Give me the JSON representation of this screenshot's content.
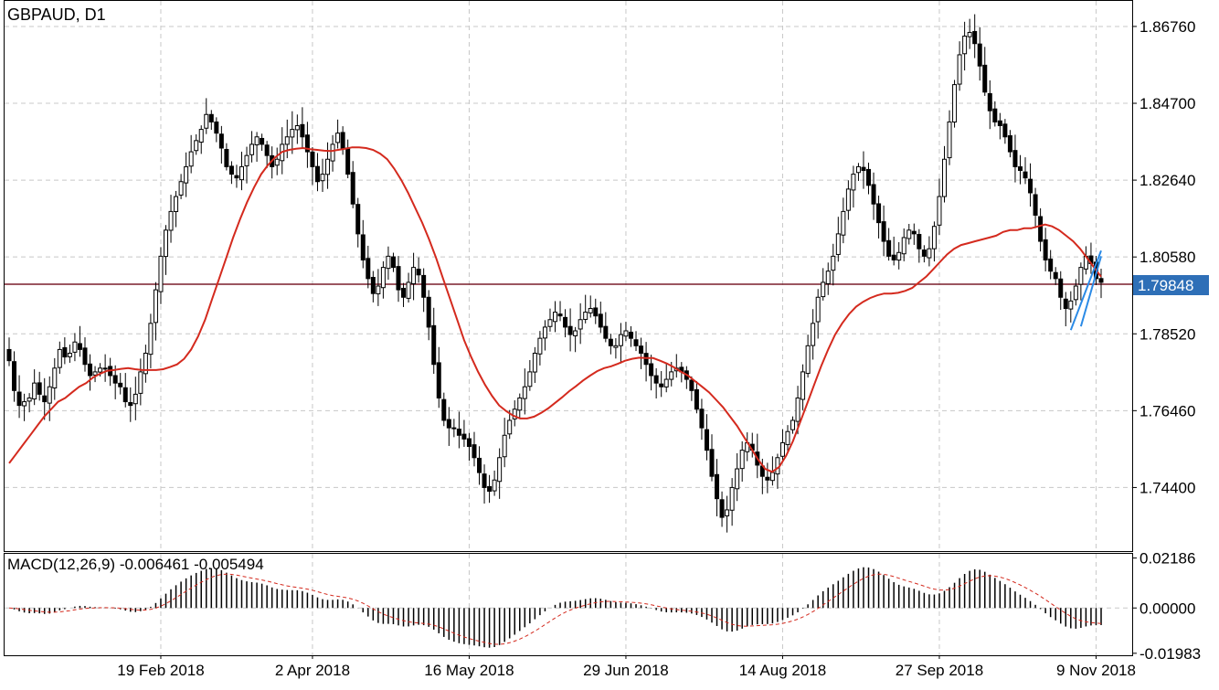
{
  "colors": {
    "candle": "#000000",
    "ma_line": "#d42a1e",
    "price_line": "#7a1f2b",
    "price_badge": "#2e6fb7",
    "trend_line": "#2a8ae6",
    "macd_signal": "#d42a1e",
    "grid": "#c8c8c8"
  },
  "chart_data": [
    {
      "type": "candlestick",
      "title": "GBPAUD, D1",
      "ylim": [
        1.7272,
        1.8742
      ],
      "y_ticks": [
        "1.86760",
        "1.84700",
        "1.82640",
        "1.80580",
        "1.78520",
        "1.76460",
        "1.74400"
      ],
      "current_price": "1.79848",
      "x_ticks": [
        "19 Feb 2018",
        "2 Apr 2018",
        "16 May 2018",
        "29 Jun 2018",
        "14 Aug 2018",
        "27 Sep 2018",
        "9 Nov 2018"
      ],
      "x_tick_bar_index": [
        30,
        60,
        91,
        122,
        153,
        184,
        215
      ],
      "closes": [
        1.778,
        1.77,
        1.766,
        1.767,
        1.768,
        1.772,
        1.769,
        1.767,
        1.771,
        1.776,
        1.781,
        1.779,
        1.78,
        1.783,
        1.781,
        1.777,
        1.774,
        1.775,
        1.776,
        1.776,
        1.774,
        1.772,
        1.771,
        1.767,
        1.766,
        1.769,
        1.775,
        1.78,
        1.788,
        1.797,
        1.806,
        1.813,
        1.818,
        1.822,
        1.826,
        1.83,
        1.834,
        1.837,
        1.84,
        1.844,
        1.842,
        1.839,
        1.835,
        1.83,
        1.828,
        1.827,
        1.83,
        1.833,
        1.836,
        1.838,
        1.836,
        1.833,
        1.83,
        1.832,
        1.836,
        1.838,
        1.84,
        1.841,
        1.838,
        1.834,
        1.83,
        1.826,
        1.828,
        1.832,
        1.836,
        1.839,
        1.835,
        1.828,
        1.82,
        1.812,
        1.805,
        1.8,
        1.796,
        1.798,
        1.803,
        1.806,
        1.803,
        1.797,
        1.795,
        1.799,
        1.803,
        1.801,
        1.795,
        1.787,
        1.777,
        1.768,
        1.762,
        1.76,
        1.76,
        1.758,
        1.757,
        1.755,
        1.752,
        1.748,
        1.744,
        1.743,
        1.746,
        1.752,
        1.758,
        1.762,
        1.765,
        1.768,
        1.771,
        1.775,
        1.78,
        1.784,
        1.787,
        1.789,
        1.791,
        1.79,
        1.787,
        1.785,
        1.786,
        1.789,
        1.791,
        1.792,
        1.79,
        1.787,
        1.784,
        1.782,
        1.782,
        1.785,
        1.786,
        1.784,
        1.782,
        1.78,
        1.777,
        1.774,
        1.772,
        1.771,
        1.773,
        1.775,
        1.776,
        1.775,
        1.773,
        1.77,
        1.765,
        1.76,
        1.754,
        1.747,
        1.741,
        1.736,
        1.738,
        1.744,
        1.749,
        1.754,
        1.756,
        1.754,
        1.75,
        1.747,
        1.746,
        1.748,
        1.752,
        1.756,
        1.759,
        1.762,
        1.768,
        1.775,
        1.782,
        1.788,
        1.795,
        1.799,
        1.802,
        1.806,
        1.812,
        1.818,
        1.824,
        1.828,
        1.83,
        1.829,
        1.825,
        1.82,
        1.815,
        1.81,
        1.806,
        1.805,
        1.807,
        1.811,
        1.813,
        1.812,
        1.808,
        1.806,
        1.808,
        1.814,
        1.822,
        1.832,
        1.842,
        1.852,
        1.86,
        1.865,
        1.866,
        1.863,
        1.857,
        1.85,
        1.845,
        1.842,
        1.841,
        1.838,
        1.834,
        1.83,
        1.829,
        1.827,
        1.823,
        1.817,
        1.81,
        1.805,
        1.802,
        1.8,
        1.795,
        1.792,
        1.794,
        1.798,
        1.803,
        1.806,
        1.804,
        1.8,
        1.799
      ],
      "ma_values": [
        1.7505,
        1.753,
        1.7555,
        1.758,
        1.7605,
        1.763,
        1.765,
        1.767,
        1.768,
        1.7695,
        1.771,
        1.772,
        1.7735,
        1.7745,
        1.7753,
        1.7755,
        1.7758,
        1.776,
        1.7757,
        1.7755,
        1.7755,
        1.7755,
        1.7757,
        1.7763,
        1.777,
        1.7785,
        1.781,
        1.7845,
        1.789,
        1.7945,
        1.8,
        1.8055,
        1.811,
        1.816,
        1.8205,
        1.8245,
        1.828,
        1.8305,
        1.8325,
        1.834,
        1.8345,
        1.8348,
        1.835,
        1.8347,
        1.8345,
        1.8343,
        1.8342,
        1.8345,
        1.8348,
        1.8352,
        1.8352,
        1.835,
        1.8345,
        1.8335,
        1.832,
        1.8295,
        1.8265,
        1.823,
        1.819,
        1.815,
        1.8105,
        1.8055,
        1.8,
        1.7945,
        1.789,
        1.7835,
        1.779,
        1.775,
        1.7715,
        1.7685,
        1.766,
        1.7645,
        1.7633,
        1.7625,
        1.7625,
        1.763,
        1.764,
        1.7652,
        1.7667,
        1.7682,
        1.7698,
        1.7712,
        1.7727,
        1.774,
        1.7752,
        1.776,
        1.7765,
        1.7772,
        1.778,
        1.7785,
        1.7788,
        1.7787,
        1.7787,
        1.778,
        1.7772,
        1.7762,
        1.775,
        1.774,
        1.7725,
        1.771,
        1.7695,
        1.7675,
        1.7655,
        1.763,
        1.7605,
        1.7575,
        1.7545,
        1.7515,
        1.749,
        1.7482,
        1.7495,
        1.7525,
        1.7565,
        1.7615,
        1.7665,
        1.7715,
        1.7765,
        1.781,
        1.785,
        1.788,
        1.7905,
        1.7925,
        1.7938,
        1.7948,
        1.7955,
        1.796,
        1.796,
        1.7962,
        1.7967,
        1.7975,
        1.799,
        1.8005,
        1.8025,
        1.8045,
        1.8065,
        1.808,
        1.809,
        1.8095,
        1.81,
        1.8105,
        1.811,
        1.8115,
        1.8125,
        1.813,
        1.813,
        1.8135,
        1.8135,
        1.814,
        1.8145,
        1.814,
        1.813,
        1.8115,
        1.81,
        1.808,
        1.8055,
        1.803,
        1.8005
      ],
      "ma_start_index": 0
    },
    {
      "type": "histogram",
      "title": "MACD(12,26,9) -0.006461 -0.005494",
      "ylim": [
        -0.0203,
        0.0233
      ],
      "y_ticks": [
        "0.02186",
        "0.00000",
        "-0.01983"
      ]
    }
  ]
}
